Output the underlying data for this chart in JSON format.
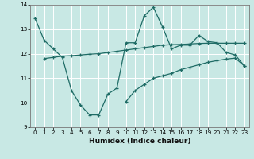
{
  "xlabel": "Humidex (Indice chaleur)",
  "xlim": [
    -0.5,
    23.5
  ],
  "ylim": [
    9,
    14
  ],
  "yticks": [
    9,
    10,
    11,
    12,
    13,
    14
  ],
  "xticks": [
    0,
    1,
    2,
    3,
    4,
    5,
    6,
    7,
    8,
    9,
    10,
    11,
    12,
    13,
    14,
    15,
    16,
    17,
    18,
    19,
    20,
    21,
    22,
    23
  ],
  "bg_color": "#c8e8e4",
  "line_color": "#1e6b65",
  "grid_color": "#ffffff",
  "line1_y": [
    13.45,
    12.55,
    12.2,
    11.85,
    10.5,
    9.9,
    9.5,
    9.5,
    10.35,
    10.6,
    12.45,
    12.45,
    13.55,
    13.9,
    13.1,
    12.2,
    12.35,
    12.35,
    12.75,
    12.5,
    12.45,
    12.05,
    11.95,
    11.5
  ],
  "line2_y": [
    null,
    11.8,
    11.85,
    11.9,
    11.92,
    11.95,
    11.98,
    12.0,
    12.05,
    12.1,
    12.15,
    12.2,
    12.25,
    12.3,
    12.35,
    12.37,
    12.38,
    12.4,
    12.42,
    12.43,
    12.43,
    12.43,
    12.43,
    12.43
  ],
  "line3_y": [
    null,
    null,
    null,
    null,
    null,
    null,
    null,
    null,
    null,
    null,
    10.05,
    10.5,
    10.75,
    11.0,
    11.1,
    11.2,
    11.35,
    11.45,
    11.55,
    11.65,
    11.72,
    11.78,
    11.82,
    11.5
  ]
}
